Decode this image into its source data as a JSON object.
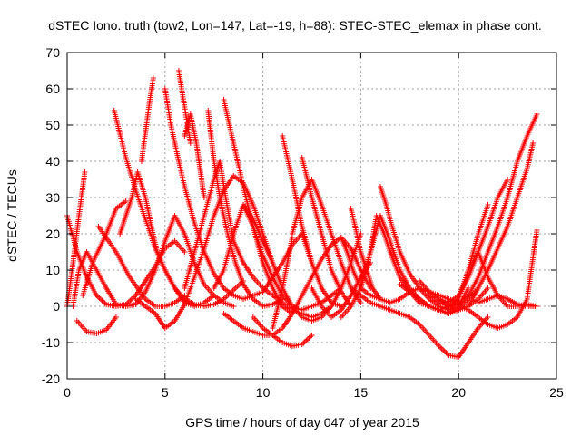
{
  "chart_data": {
    "type": "scatter",
    "title": "dSTEC Iono. truth (tow2, Lon=147, Lat=-19, h=88): STEC-STEC_elemax in phase cont.",
    "xlabel": "GPS time / hours of day 047 of year 2015",
    "ylabel": "dSTEC  / TECUs",
    "xlim": [
      0,
      25
    ],
    "ylim": [
      -20,
      70
    ],
    "xticks": [
      0,
      5,
      10,
      15,
      20,
      25
    ],
    "yticks": [
      -20,
      -10,
      0,
      10,
      20,
      30,
      40,
      50,
      60,
      70
    ],
    "grid": true,
    "marker": "+",
    "color": "#ff0000",
    "series": [
      {
        "x": [
          0.0,
          0.5,
          1.0,
          1.5,
          2.0,
          2.5,
          3.0,
          3.5,
          4.0,
          4.5,
          5.0,
          5.5,
          6.0
        ],
        "y": [
          25.0,
          15.0,
          8.0,
          3.0,
          0.5,
          0.0,
          0.5,
          3.0,
          7.0,
          11.0,
          16.0,
          18.0,
          15.0
        ]
      },
      {
        "x": [
          0.0,
          0.3,
          0.6,
          0.9
        ],
        "y": [
          0.0,
          12.0,
          25.0,
          37.0
        ]
      },
      {
        "x": [
          0.3,
          0.6,
          1.0,
          1.5,
          2.0,
          2.5,
          3.0,
          3.5,
          4.0,
          4.5,
          5.0,
          5.5,
          6.0,
          6.5,
          7.0,
          7.5,
          8.0,
          8.5
        ],
        "y": [
          0.0,
          10.0,
          15.0,
          10.0,
          5.0,
          0.5,
          0.0,
          0.5,
          4.0,
          10.0,
          18.0,
          25.0,
          20.0,
          12.0,
          6.0,
          3.0,
          1.0,
          0.0
        ]
      },
      {
        "x": [
          0.5,
          1.0,
          1.5,
          2.0,
          2.5
        ],
        "y": [
          -4.0,
          -7.0,
          -7.5,
          -6.5,
          -3.0
        ]
      },
      {
        "x": [
          0.8,
          1.3,
          2.0,
          2.5,
          3.0
        ],
        "y": [
          3.0,
          12.0,
          20.0,
          27.0,
          29.0
        ]
      },
      {
        "x": [
          1.6,
          2.5,
          3.2,
          4.0,
          4.5,
          5.0,
          5.5,
          6.0
        ],
        "y": [
          22.0,
          15.0,
          8.0,
          2.0,
          0.0,
          0.0,
          1.0,
          3.0
        ]
      },
      {
        "x": [
          2.4,
          3.0,
          3.5,
          4.0,
          4.5,
          5.0,
          5.5,
          6.0,
          6.5,
          7.0,
          7.5,
          8.0,
          9.0
        ],
        "y": [
          54.0,
          41.0,
          32.0,
          24.0,
          16.0,
          10.0,
          5.0,
          2.0,
          0.5,
          0.0,
          0.5,
          2.0,
          7.0
        ]
      },
      {
        "x": [
          2.7,
          3.0,
          3.3,
          3.6,
          4.0,
          4.3,
          4.6,
          5.0,
          5.5,
          6.0,
          6.5,
          7.0,
          7.5
        ],
        "y": [
          20.0,
          25.0,
          30.0,
          37.0,
          30.0,
          22.0,
          15.0,
          10.0,
          5.0,
          1.0,
          0.0,
          1.0,
          3.0
        ]
      },
      {
        "x": [
          3.8,
          4.0,
          4.2,
          4.4
        ],
        "y": [
          40.0,
          48.0,
          56.0,
          63.0
        ]
      },
      {
        "x": [
          3.5,
          4.0,
          4.5,
          5.0,
          5.5,
          6.0,
          6.5,
          7.0,
          7.5,
          8.0,
          8.5,
          9.0,
          9.5,
          10.0,
          10.5
        ],
        "y": [
          2.0,
          0.0,
          -2.0,
          -6.0,
          -4.0,
          0.5,
          8.0,
          16.0,
          25.0,
          32.0,
          36.0,
          34.0,
          28.0,
          20.0,
          12.0
        ]
      },
      {
        "x": [
          5.0,
          5.3,
          5.7,
          6.0,
          6.5,
          7.0,
          7.5,
          8.0,
          8.5,
          9.0,
          10.0,
          10.5,
          11.0,
          11.5,
          12.0,
          12.5
        ],
        "y": [
          60.0,
          50.0,
          40.0,
          33.0,
          23.0,
          15.0,
          9.0,
          5.0,
          3.0,
          2.0,
          4.0,
          8.0,
          12.0,
          17.0,
          20.0,
          12.0
        ]
      },
      {
        "x": [
          5.7,
          6.0,
          6.3
        ],
        "y": [
          65.0,
          55.0,
          45.0
        ]
      },
      {
        "x": [
          6.0,
          6.3,
          6.6,
          7.0
        ],
        "y": [
          47.0,
          53.0,
          45.0,
          30.0
        ]
      },
      {
        "x": [
          7.2,
          7.5,
          7.8,
          8.2,
          8.6,
          9.0,
          9.5,
          10.0,
          10.5,
          11.0
        ],
        "y": [
          54.0,
          40.0,
          30.0,
          20.0,
          12.0,
          6.0,
          2.0,
          0.0,
          0.5,
          2.0
        ]
      },
      {
        "x": [
          6.0,
          6.5,
          7.0,
          7.5,
          7.8,
          8.1,
          8.5,
          9.0,
          9.5,
          10.0,
          10.5,
          11.0,
          11.5,
          12.0,
          12.5,
          13.0,
          13.5
        ],
        "y": [
          5.0,
          15.0,
          25.0,
          35.0,
          40.0,
          30.0,
          18.0,
          12.0,
          8.0,
          5.0,
          3.0,
          1.0,
          -1.0,
          -2.0,
          -3.0,
          -2.0,
          0.0
        ]
      },
      {
        "x": [
          8.0,
          8.5,
          9.0,
          9.5,
          10.0,
          10.5,
          11.0,
          11.5,
          12.0,
          12.5,
          13.0,
          13.5,
          14.0
        ],
        "y": [
          57.0,
          45.0,
          33.0,
          22.0,
          14.0,
          8.0,
          3.0,
          0.0,
          -1.0,
          0.0,
          1.0,
          3.0,
          5.0
        ]
      },
      {
        "x": [
          7.5,
          8.0,
          8.5,
          9.0,
          9.5,
          10.0,
          10.5,
          11.0,
          11.5
        ],
        "y": [
          5.0,
          10.0,
          20.0,
          28.0,
          22.0,
          12.0,
          5.0,
          0.0,
          -2.0
        ]
      },
      {
        "x": [
          8.0,
          8.5,
          9.0,
          9.5,
          10.0,
          10.5,
          11.0,
          11.5,
          12.0,
          12.5,
          13.0,
          13.5,
          14.0,
          14.5,
          15.0,
          15.5
        ],
        "y": [
          -2.0,
          -4.0,
          -6.0,
          -7.0,
          -8.0,
          -8.0,
          -6.0,
          -2.0,
          3.0,
          8.0,
          13.0,
          17.0,
          19.0,
          16.0,
          10.0,
          5.0
        ]
      },
      {
        "x": [
          9.0,
          9.5,
          10.0,
          10.5,
          11.0,
          11.5,
          12.0,
          12.5,
          13.0,
          13.5,
          14.0,
          14.5,
          15.0
        ],
        "y": [
          28.0,
          24.0,
          18.0,
          12.0,
          5.0,
          0.0,
          -3.0,
          -4.0,
          -3.0,
          0.0,
          5.0,
          12.0,
          20.0
        ]
      },
      {
        "x": [
          9.5,
          10.0,
          10.5,
          11.0,
          11.5,
          12.0,
          12.5
        ],
        "y": [
          -3.0,
          -6.0,
          -8.0,
          -10.0,
          -11.0,
          -10.5,
          -8.0
        ]
      },
      {
        "x": [
          10.5,
          11.0,
          11.5
        ],
        "y": [
          -6.0,
          5.0,
          19.0
        ]
      },
      {
        "x": [
          11.0,
          11.5,
          12.0,
          12.5,
          13.0,
          13.5,
          14.0
        ],
        "y": [
          47.0,
          35.0,
          22.0,
          12.0,
          5.0,
          1.0,
          0.0
        ]
      },
      {
        "x": [
          11.5,
          12.0,
          12.5,
          13.0,
          13.5,
          14.0,
          14.5,
          15.0
        ],
        "y": [
          20.0,
          30.0,
          35.0,
          28.0,
          20.0,
          12.0,
          5.0,
          1.0
        ]
      },
      {
        "x": [
          12.0,
          12.5,
          13.0,
          13.5,
          14.0,
          14.5
        ],
        "y": [
          41.0,
          30.0,
          20.0,
          10.0,
          4.0,
          0.0
        ]
      },
      {
        "x": [
          12.5,
          13.0,
          13.5,
          14.0,
          14.5,
          15.0,
          15.5
        ],
        "y": [
          5.0,
          0.0,
          -3.0,
          -1.0,
          3.0,
          8.0,
          12.0
        ]
      },
      {
        "x": [
          14.0,
          14.3,
          14.6,
          15.0,
          15.5,
          16.0
        ],
        "y": [
          19.0,
          15.0,
          10.0,
          5.0,
          3.0,
          2.0
        ]
      },
      {
        "x": [
          14.5,
          14.8,
          15.0,
          15.3,
          15.6,
          16.0,
          16.5,
          17.0,
          17.5,
          18.0,
          18.5,
          19.0,
          19.5,
          20.0
        ],
        "y": [
          27.0,
          20.0,
          15.0,
          10.0,
          5.0,
          2.0,
          1.0,
          2.0,
          4.0,
          5.0,
          4.0,
          3.0,
          2.0,
          1.0
        ]
      },
      {
        "x": [
          14.0,
          14.5,
          15.0,
          15.5,
          16.0,
          16.5,
          17.0,
          17.5,
          18.0,
          18.5,
          19.0,
          19.5,
          20.0,
          20.5
        ],
        "y": [
          -3.0,
          0.0,
          5.0,
          15.0,
          25.0,
          18.0,
          10.0,
          5.0,
          2.0,
          0.0,
          -1.0,
          -2.0,
          0.0,
          5.0
        ]
      },
      {
        "x": [
          15.0,
          15.5,
          15.8,
          16.2,
          16.5,
          17.0,
          17.5,
          18.0,
          18.5,
          19.0,
          19.5,
          20.0
        ],
        "y": [
          6.0,
          15.0,
          25.0,
          20.0,
          15.0,
          8.0,
          4.0,
          1.0,
          0.0,
          -1.0,
          0.0,
          2.0
        ]
      },
      {
        "x": [
          16.0,
          16.3,
          16.6,
          17.0,
          17.5,
          18.0,
          18.5,
          19.0,
          19.5,
          20.0,
          20.5,
          21.0,
          21.5
        ],
        "y": [
          33.0,
          28.0,
          22.0,
          15.0,
          9.0,
          5.0,
          2.0,
          0.0,
          -1.0,
          -1.0,
          0.0,
          2.0,
          5.0
        ]
      },
      {
        "x": [
          14.5,
          15.0,
          15.5,
          16.0,
          16.5,
          17.0,
          17.5,
          18.0,
          18.5,
          19.0,
          19.5,
          20.0,
          20.5,
          21.0,
          21.5
        ],
        "y": [
          5.0,
          3.0,
          1.0,
          0.0,
          -1.0,
          -2.0,
          -3.0,
          -5.0,
          -8.0,
          -11.0,
          -13.5,
          -14.0,
          -10.0,
          -6.0,
          -3.0
        ]
      },
      {
        "x": [
          17.0,
          17.5,
          18.0,
          18.5,
          19.0,
          19.5,
          20.0,
          20.5,
          21.0
        ],
        "y": [
          6.0,
          4.0,
          2.0,
          0.0,
          -1.0,
          -2.0,
          -1.0,
          2.0,
          5.0
        ]
      },
      {
        "x": [
          18.0,
          18.5,
          19.0,
          19.5,
          20.0,
          20.5,
          21.0,
          21.5,
          22.0,
          22.5,
          23.0,
          23.5,
          24.0
        ],
        "y": [
          7.0,
          4.0,
          2.0,
          0.0,
          0.5,
          3.0,
          8.0,
          15.0,
          22.0,
          30.0,
          40.0,
          47.0,
          53.0
        ]
      },
      {
        "x": [
          18.5,
          19.0,
          19.5,
          20.0,
          20.5,
          21.0,
          21.5
        ],
        "y": [
          3.0,
          1.0,
          0.0,
          2.0,
          10.0,
          20.0,
          28.0
        ]
      },
      {
        "x": [
          19.0,
          19.5,
          20.0,
          20.5,
          21.0,
          21.5,
          22.0,
          22.5
        ],
        "y": [
          2.0,
          1.0,
          3.0,
          8.0,
          15.0,
          22.0,
          30.0,
          35.0
        ]
      },
      {
        "x": [
          19.5,
          20.0,
          20.5,
          21.0,
          21.5,
          22.0,
          22.5,
          23.0,
          23.5,
          24.0
        ],
        "y": [
          -1.0,
          2.0,
          10.0,
          15.0,
          8.0,
          3.0,
          0.0,
          0.0,
          0.5,
          0.0
        ]
      },
      {
        "x": [
          20.0,
          20.5,
          21.0,
          21.5,
          22.0,
          22.5,
          23.0,
          23.5,
          24.0
        ],
        "y": [
          0.0,
          -1.0,
          -3.0,
          -5.0,
          -6.0,
          -5.0,
          -3.0,
          2.0,
          21.0
        ]
      },
      {
        "x": [
          20.5,
          21.0,
          21.5,
          22.0,
          22.5,
          23.0,
          23.5,
          23.8
        ],
        "y": [
          0.0,
          5.0,
          10.0,
          16.0,
          22.0,
          30.0,
          38.0,
          45.0
        ]
      },
      {
        "x": [
          21.0,
          21.5,
          22.0,
          22.5,
          23.0,
          23.5,
          24.0
        ],
        "y": [
          1.0,
          2.0,
          3.0,
          2.0,
          0.5,
          0.0,
          0.0
        ]
      }
    ]
  }
}
